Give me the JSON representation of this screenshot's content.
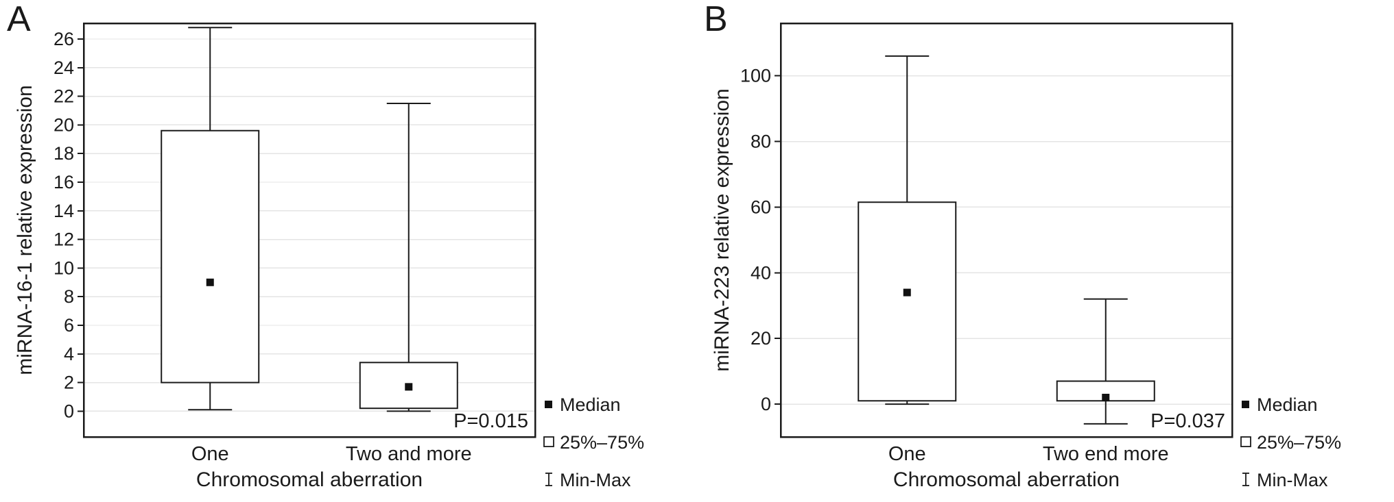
{
  "figure": {
    "background": "#ffffff",
    "line_color": "#1a1a1a",
    "grid_color": "#e4e4e4"
  },
  "chart_data": [
    {
      "type": "box",
      "panel_label": "A",
      "ylabel": "miRNA-16-1 relative expression",
      "xlabel": "Chromosomal aberration",
      "ylim": [
        -1.8,
        27.1
      ],
      "yticks": [
        0,
        2,
        4,
        6,
        8,
        10,
        12,
        14,
        16,
        18,
        20,
        22,
        24,
        26
      ],
      "grid": true,
      "categories": [
        "One",
        "Two and more"
      ],
      "series": [
        {
          "category": "One",
          "min": 0.1,
          "q1": 2.0,
          "median": 9.0,
          "q3": 19.6,
          "max": 26.8
        },
        {
          "category": "Two and more",
          "min": 0.0,
          "q1": 0.2,
          "median": 1.7,
          "q3": 3.4,
          "max": 21.5
        }
      ],
      "annotation": "P=0.015",
      "legend": [
        "Median",
        "25%–75%",
        "Min-Max"
      ],
      "legend_position": "right-bottom-outside"
    },
    {
      "type": "box",
      "panel_label": "B",
      "ylabel": "miRNA-223 relative expression",
      "xlabel": "Chromosomal aberration",
      "ylim": [
        -10,
        116
      ],
      "yticks": [
        0,
        20,
        40,
        60,
        80,
        100
      ],
      "grid": true,
      "categories": [
        "One",
        "Two end more"
      ],
      "series": [
        {
          "category": "One",
          "min": 0.0,
          "q1": 1.0,
          "median": 34.0,
          "q3": 61.5,
          "max": 106.0
        },
        {
          "category": "Two end more",
          "min": -6.0,
          "q1": 1.0,
          "median": 2.0,
          "q3": 7.0,
          "max": 32.0
        }
      ],
      "annotation": "P=0.037",
      "legend": [
        "Median",
        "25%–75%",
        "Min-Max"
      ],
      "legend_position": "right-bottom-outside"
    }
  ]
}
